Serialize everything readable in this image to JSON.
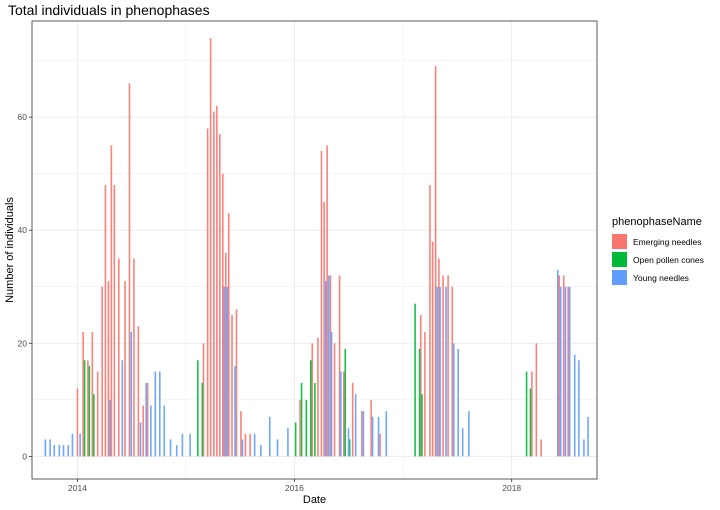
{
  "chart_data": {
    "type": "bar",
    "title": "Total individuals in phenophases",
    "xlabel": "Date",
    "ylabel": "Number of individuals",
    "x_range": [
      "2013-08-01",
      "2018-10-15"
    ],
    "xticks": [
      {
        "value": "2014-01-01",
        "label": "2014"
      },
      {
        "value": "2016-01-01",
        "label": "2016"
      },
      {
        "value": "2018-01-01",
        "label": "2018"
      }
    ],
    "ylim": [
      -4,
      77
    ],
    "yticks": [
      0,
      20,
      40,
      60
    ],
    "grid": true,
    "legend": {
      "title": "phenophaseName",
      "position": "right",
      "entries": [
        "Emerging needles",
        "Open pollen cones",
        "Young needles"
      ]
    },
    "colors": {
      "Emerging needles": "#F8766D",
      "Open pollen cones": "#00BA38",
      "Young needles": "#619CFF"
    },
    "series": [
      {
        "name": "Emerging needles",
        "points": [
          [
            "2014-01-01",
            12
          ],
          [
            "2014-01-20",
            22
          ],
          [
            "2014-02-05",
            17
          ],
          [
            "2014-02-20",
            22
          ],
          [
            "2014-03-10",
            15
          ],
          [
            "2014-03-25",
            30
          ],
          [
            "2014-04-05",
            48
          ],
          [
            "2014-04-15",
            31
          ],
          [
            "2014-04-25",
            55
          ],
          [
            "2014-05-05",
            48
          ],
          [
            "2014-05-20",
            35
          ],
          [
            "2014-06-10",
            31
          ],
          [
            "2014-06-25",
            66
          ],
          [
            "2014-07-10",
            35
          ],
          [
            "2014-07-25",
            23
          ],
          [
            "2014-08-10",
            9
          ],
          [
            "2014-08-25",
            13
          ],
          [
            "2015-03-01",
            20
          ],
          [
            "2015-03-15",
            58
          ],
          [
            "2015-03-25",
            74
          ],
          [
            "2015-04-05",
            61
          ],
          [
            "2015-04-15",
            62
          ],
          [
            "2015-04-25",
            57
          ],
          [
            "2015-05-05",
            50
          ],
          [
            "2015-05-15",
            36
          ],
          [
            "2015-05-25",
            43
          ],
          [
            "2015-06-05",
            25
          ],
          [
            "2015-06-20",
            26
          ],
          [
            "2015-07-05",
            8
          ],
          [
            "2015-07-20",
            4
          ],
          [
            "2015-08-05",
            4
          ],
          [
            "2016-01-20",
            10
          ],
          [
            "2016-03-01",
            20
          ],
          [
            "2016-03-20",
            21
          ],
          [
            "2016-04-01",
            54
          ],
          [
            "2016-04-10",
            45
          ],
          [
            "2016-04-20",
            55
          ],
          [
            "2016-05-01",
            32
          ],
          [
            "2016-05-15",
            20
          ],
          [
            "2016-06-01",
            32
          ],
          [
            "2016-06-15",
            15
          ],
          [
            "2016-07-15",
            13
          ],
          [
            "2016-08-15",
            8
          ],
          [
            "2016-09-15",
            10
          ],
          [
            "2016-10-15",
            4
          ],
          [
            "2017-03-01",
            25
          ],
          [
            "2017-03-15",
            22
          ],
          [
            "2017-04-01",
            48
          ],
          [
            "2017-04-10",
            38
          ],
          [
            "2017-04-20",
            69
          ],
          [
            "2017-05-01",
            35
          ],
          [
            "2017-05-15",
            32
          ],
          [
            "2017-06-01",
            32
          ],
          [
            "2017-06-15",
            30
          ],
          [
            "2018-03-10",
            15
          ],
          [
            "2018-03-25",
            20
          ],
          [
            "2018-04-10",
            3
          ],
          [
            "2018-06-10",
            32
          ],
          [
            "2018-06-25",
            32
          ],
          [
            "2018-07-10",
            30
          ]
        ]
      },
      {
        "name": "Open pollen cones",
        "points": [
          [
            "2014-01-25",
            17
          ],
          [
            "2014-02-10",
            16
          ],
          [
            "2014-02-25",
            11
          ],
          [
            "2015-02-10",
            17
          ],
          [
            "2015-02-25",
            13
          ],
          [
            "2016-01-05",
            6
          ],
          [
            "2016-01-25",
            13
          ],
          [
            "2016-02-10",
            10
          ],
          [
            "2016-02-25",
            17
          ],
          [
            "2016-03-10",
            13
          ],
          [
            "2016-06-20",
            19
          ],
          [
            "2016-07-05",
            3
          ],
          [
            "2017-02-10",
            27
          ],
          [
            "2017-02-25",
            19
          ],
          [
            "2017-03-05",
            11
          ],
          [
            "2018-02-20",
            15
          ],
          [
            "2018-03-05",
            12
          ]
        ]
      },
      {
        "name": "Young needles",
        "points": [
          [
            "2013-09-15",
            3
          ],
          [
            "2013-10-01",
            3
          ],
          [
            "2013-10-15",
            2
          ],
          [
            "2013-11-01",
            2
          ],
          [
            "2013-11-15",
            2
          ],
          [
            "2013-12-01",
            2
          ],
          [
            "2013-12-15",
            4
          ],
          [
            "2014-01-10",
            4
          ],
          [
            "2014-04-20",
            10
          ],
          [
            "2014-06-01",
            17
          ],
          [
            "2014-07-01",
            22
          ],
          [
            "2014-08-01",
            6
          ],
          [
            "2014-08-20",
            13
          ],
          [
            "2014-09-05",
            9
          ],
          [
            "2014-09-20",
            15
          ],
          [
            "2014-10-05",
            15
          ],
          [
            "2014-10-20",
            9
          ],
          [
            "2014-11-10",
            3
          ],
          [
            "2014-12-01",
            2
          ],
          [
            "2014-12-20",
            4
          ],
          [
            "2015-01-15",
            4
          ],
          [
            "2015-05-10",
            30
          ],
          [
            "2015-05-20",
            30
          ],
          [
            "2015-06-15",
            16
          ],
          [
            "2015-07-10",
            3
          ],
          [
            "2015-08-20",
            4
          ],
          [
            "2015-09-10",
            2
          ],
          [
            "2015-10-10",
            7
          ],
          [
            "2015-11-05",
            3
          ],
          [
            "2015-12-10",
            5
          ],
          [
            "2016-04-15",
            31
          ],
          [
            "2016-04-25",
            32
          ],
          [
            "2016-05-05",
            22
          ],
          [
            "2016-06-05",
            15
          ],
          [
            "2016-07-01",
            5
          ],
          [
            "2016-07-25",
            11
          ],
          [
            "2016-08-20",
            8
          ],
          [
            "2016-09-20",
            7
          ],
          [
            "2016-10-10",
            7
          ],
          [
            "2016-11-05",
            8
          ],
          [
            "2017-04-25",
            30
          ],
          [
            "2017-05-05",
            30
          ],
          [
            "2017-05-25",
            30
          ],
          [
            "2017-06-20",
            20
          ],
          [
            "2017-07-05",
            19
          ],
          [
            "2017-07-20",
            5
          ],
          [
            "2017-08-10",
            8
          ],
          [
            "2018-06-05",
            33
          ],
          [
            "2018-06-15",
            30
          ],
          [
            "2018-07-01",
            30
          ],
          [
            "2018-07-15",
            30
          ],
          [
            "2018-08-01",
            18
          ],
          [
            "2018-08-15",
            17
          ],
          [
            "2018-09-01",
            3
          ],
          [
            "2018-09-15",
            7
          ]
        ]
      }
    ]
  }
}
